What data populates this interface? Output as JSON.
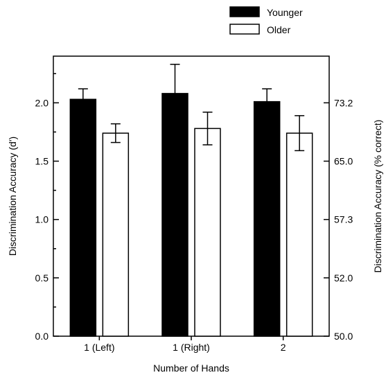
{
  "chart_data": {
    "type": "bar",
    "title": "",
    "xlabel": "Number of Hands",
    "ylabel": "Discrimination Accuracy (d')",
    "ylabel_right": "Discrimination Accuracy (% correct)",
    "categories": [
      "1 (Left)",
      "1 (Right)",
      "2"
    ],
    "ylim": [
      0,
      2.4
    ],
    "yticks": [
      0.0,
      0.5,
      1.0,
      1.5,
      2.0
    ],
    "ytick_labels": [
      "0.0",
      "0.5",
      "1.0",
      "1.5",
      "2.0"
    ],
    "right_ticks": [
      {
        "at_d": 0.0,
        "label": "50.0"
      },
      {
        "at_d": 0.5,
        "label": "52.0"
      },
      {
        "at_d": 1.0,
        "label": "57.3"
      },
      {
        "at_d": 1.5,
        "label": "65.0"
      },
      {
        "at_d": 2.0,
        "label": "73.2"
      }
    ],
    "series": [
      {
        "name": "Younger",
        "color": "#000000",
        "values": [
          2.03,
          2.08,
          2.01
        ],
        "errors": [
          0.09,
          0.25,
          0.11
        ]
      },
      {
        "name": "Older",
        "color": "#ffffff",
        "values": [
          1.74,
          1.78,
          1.74
        ],
        "errors": [
          0.08,
          0.14,
          0.15
        ]
      }
    ],
    "legend": {
      "position": "top-right",
      "entries": [
        "Younger",
        "Older"
      ]
    },
    "grid": false
  }
}
